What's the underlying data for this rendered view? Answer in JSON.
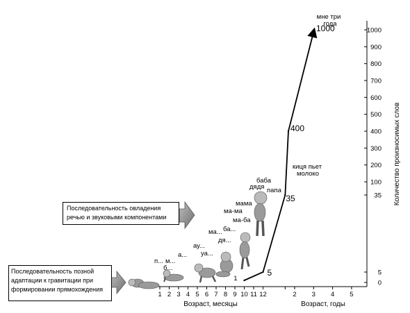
{
  "chart_data": {
    "type": "line",
    "x_months": {
      "label": "Возраст, месяцы",
      "ticks": [
        "1",
        "2",
        "3",
        "4",
        "5",
        "6",
        "7",
        "8",
        "9",
        "10",
        "11",
        "12"
      ]
    },
    "x_years": {
      "label": "Возраст, годы",
      "ticks": [
        "2",
        "3",
        "4",
        "5"
      ]
    },
    "ylabel": "Количество произносимых слов",
    "y_ticks": [
      "0",
      "5",
      "35",
      "100",
      "200",
      "300",
      "400",
      "500",
      "600",
      "700",
      "800",
      "900",
      "1000"
    ],
    "series": [
      {
        "x": [
          "10 мес.",
          "12 мес.",
          "18 мес.",
          "2 года",
          "3 года"
        ],
        "values": [
          1,
          5,
          35,
          400,
          1000
        ]
      }
    ],
    "point_labels": [
      "1",
      "5",
      "35",
      "400",
      "1000"
    ],
    "end_label": [
      "мне три",
      "года"
    ],
    "annotations": {
      "sounds": [
        "п...",
        "б...",
        "м...",
        "а...",
        "ау...",
        "уа...",
        "ма...",
        "ба...",
        "дя...",
        "ма-ба",
        "ма-ма",
        "мама",
        "дядя",
        "баба",
        "папа"
      ],
      "phrase": [
        "киця пьет",
        "молоко"
      ]
    },
    "arrow_boxes": [
      [
        "Последовательность позной",
        "адаптации к гравитации при",
        "формировании прямохождения"
      ],
      [
        "Последовательность овладения",
        "речью и звуковыми компонентами"
      ]
    ]
  }
}
